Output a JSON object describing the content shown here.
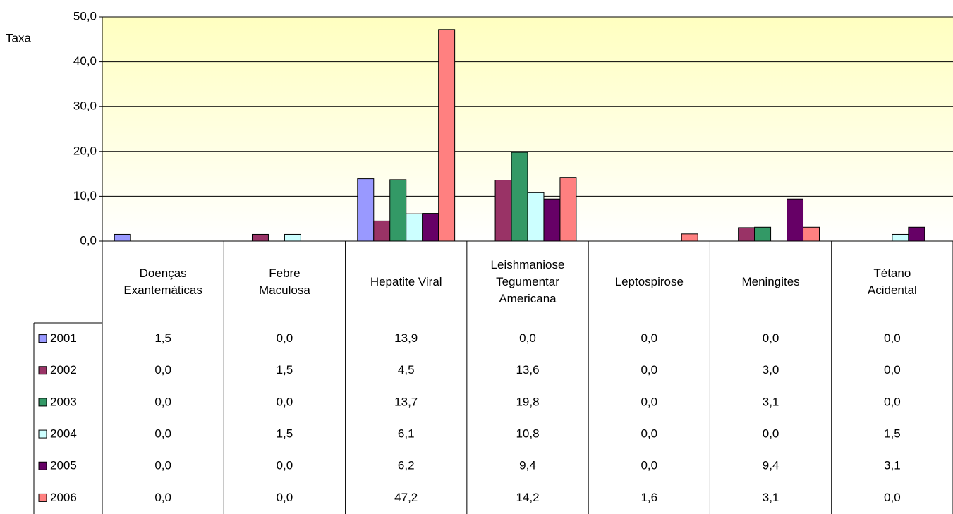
{
  "chart_data": {
    "type": "bar",
    "y_label": "Taxa",
    "categories": [
      "Doenças\nExantemáticas",
      "Febre\nMaculosa",
      "Hepatite Viral",
      "Leishmaniose\nTegumentar\nAmericana",
      "Leptospirose",
      "Meningites",
      "Tétano\nAcidental"
    ],
    "series": [
      {
        "name": "2001",
        "color": "#9999ff",
        "values": [
          1.5,
          0.0,
          13.9,
          0.0,
          0.0,
          0.0,
          0.0
        ],
        "value_labels": [
          "1,5",
          "0,0",
          "13,9",
          "0,0",
          "0,0",
          "0,0",
          "0,0"
        ]
      },
      {
        "name": "2002",
        "color": "#993366",
        "values": [
          0.0,
          1.5,
          4.5,
          13.6,
          0.0,
          3.0,
          0.0
        ],
        "value_labels": [
          "0,0",
          "1,5",
          "4,5",
          "13,6",
          "0,0",
          "3,0",
          "0,0"
        ]
      },
      {
        "name": "2003",
        "color": "#339966",
        "values": [
          0.0,
          0.0,
          13.7,
          19.8,
          0.0,
          3.1,
          0.0
        ],
        "value_labels": [
          "0,0",
          "0,0",
          "13,7",
          "19,8",
          "0,0",
          "3,1",
          "0,0"
        ]
      },
      {
        "name": "2004",
        "color": "#ccffff",
        "values": [
          0.0,
          1.5,
          6.1,
          10.8,
          0.0,
          0.0,
          1.5
        ],
        "value_labels": [
          "0,0",
          "1,5",
          "6,1",
          "10,8",
          "0,0",
          "0,0",
          "1,5"
        ]
      },
      {
        "name": "2005",
        "color": "#660066",
        "values": [
          0.0,
          0.0,
          6.2,
          9.4,
          0.0,
          9.4,
          3.1
        ],
        "value_labels": [
          "0,0",
          "0,0",
          "6,2",
          "9,4",
          "0,0",
          "9,4",
          "3,1"
        ]
      },
      {
        "name": "2006",
        "color": "#ff8080",
        "values": [
          0.0,
          0.0,
          47.2,
          14.2,
          1.6,
          3.1,
          0.0
        ],
        "value_labels": [
          "0,0",
          "0,0",
          "47,2",
          "14,2",
          "1,6",
          "3,1",
          "0,0"
        ]
      }
    ],
    "ylim": [
      0,
      50
    ],
    "yticks": [
      {
        "value": 0,
        "label": "0,0"
      },
      {
        "value": 10,
        "label": "10,0"
      },
      {
        "value": 20,
        "label": "20,0"
      },
      {
        "value": 30,
        "label": "30,0"
      },
      {
        "value": 40,
        "label": "40,0"
      },
      {
        "value": 50,
        "label": "50,0"
      }
    ],
    "grid": true
  }
}
